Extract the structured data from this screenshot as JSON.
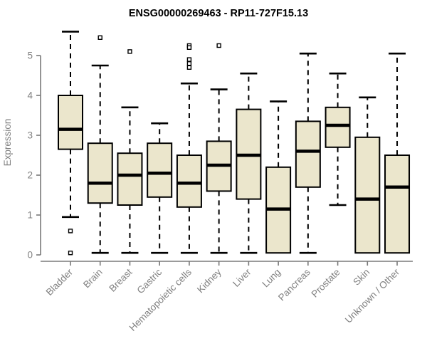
{
  "colors": {
    "background": "#ffffff",
    "box_fill": "#ebe6cc",
    "box_border": "#000000",
    "median_line": "#000000",
    "whisker": "#000000",
    "outlier_stroke": "#000000",
    "outlier_fill": "#ffffff",
    "axis_line": "#7a7a7a",
    "axis_text": "#808080",
    "title_text": "#000000"
  },
  "chart_data": {
    "type": "boxplot",
    "title": "ENSG00000269463 - RP11-727F15.13",
    "xlabel": "",
    "ylabel": "Expression",
    "ylim": [
      0,
      5.7
    ],
    "yticks": [
      0,
      1,
      2,
      3,
      4,
      5
    ],
    "grid": false,
    "legend": false,
    "categories": [
      "Bladder",
      "Brain",
      "Breast",
      "Gastric",
      "Hematopoietic cells",
      "Kidney",
      "Liver",
      "Lung",
      "Pancreas",
      "Prostate",
      "Skin",
      "Unknown / Other"
    ],
    "boxes": [
      {
        "category": "Bladder",
        "low": 0.95,
        "q1": 2.65,
        "median": 3.15,
        "q3": 4.0,
        "high": 5.6,
        "outliers": [
          0.6,
          0.05
        ]
      },
      {
        "category": "Brain",
        "low": 0.05,
        "q1": 1.3,
        "median": 1.8,
        "q3": 2.8,
        "high": 4.75,
        "outliers": [
          5.45
        ]
      },
      {
        "category": "Breast",
        "low": 0.05,
        "q1": 1.25,
        "median": 2.0,
        "q3": 2.55,
        "high": 3.7,
        "outliers": [
          5.1
        ]
      },
      {
        "category": "Gastric",
        "low": 0.05,
        "q1": 1.45,
        "median": 2.05,
        "q3": 2.8,
        "high": 3.3,
        "outliers": []
      },
      {
        "category": "Hematopoietic cells",
        "low": 0.05,
        "q1": 1.2,
        "median": 1.8,
        "q3": 2.5,
        "high": 4.3,
        "outliers": [
          5.25,
          5.2,
          4.9,
          4.8,
          4.7
        ]
      },
      {
        "category": "Kidney",
        "low": 0.05,
        "q1": 1.6,
        "median": 2.25,
        "q3": 2.85,
        "high": 4.15,
        "outliers": [
          5.25
        ]
      },
      {
        "category": "Liver",
        "low": 0.05,
        "q1": 1.4,
        "median": 2.5,
        "q3": 3.65,
        "high": 4.55,
        "outliers": []
      },
      {
        "category": "Lung",
        "low": 0.05,
        "q1": 0.05,
        "median": 1.15,
        "q3": 2.2,
        "high": 3.85,
        "outliers": []
      },
      {
        "category": "Pancreas",
        "low": 0.05,
        "q1": 1.7,
        "median": 2.6,
        "q3": 3.35,
        "high": 5.05,
        "outliers": []
      },
      {
        "category": "Prostate",
        "low": 1.25,
        "q1": 2.7,
        "median": 3.25,
        "q3": 3.7,
        "high": 4.55,
        "outliers": []
      },
      {
        "category": "Skin",
        "low": 0.05,
        "q1": 0.05,
        "median": 1.4,
        "q3": 2.95,
        "high": 3.95,
        "outliers": []
      },
      {
        "category": "Unknown / Other",
        "low": 0.05,
        "q1": 0.05,
        "median": 1.7,
        "q3": 2.5,
        "high": 5.05,
        "outliers": []
      }
    ]
  }
}
